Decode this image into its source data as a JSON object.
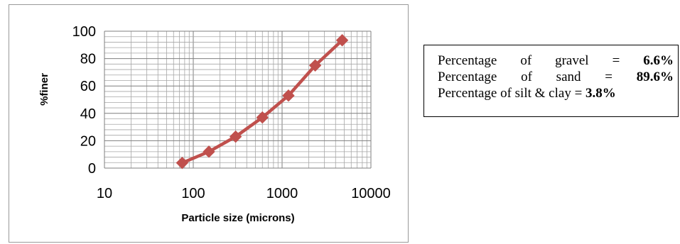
{
  "chart_data": {
    "type": "line",
    "xscale": "log",
    "xlim": [
      10,
      10000
    ],
    "ylim": [
      0,
      100
    ],
    "x_ticks": [
      "10",
      "100",
      "1000",
      "10000"
    ],
    "y_ticks": [
      "0",
      "20",
      "40",
      "60",
      "80",
      "100"
    ],
    "xlabel": "Particle size (microns)",
    "ylabel": "%finer",
    "grid": true,
    "series": [
      {
        "color": "#c0504d",
        "marker": "diamond",
        "x": [
          75,
          150,
          300,
          600,
          1180,
          2360,
          4750
        ],
        "y": [
          3.8,
          12,
          23,
          37,
          53,
          75,
          93.4
        ]
      }
    ]
  },
  "summary": {
    "gravel_label": [
      "Percentage",
      "of",
      "gravel",
      "="
    ],
    "gravel_value": "6.6%",
    "sand_label": [
      "Percentage",
      "of",
      "sand",
      "="
    ],
    "sand_value": "89.6%",
    "silt_label": "Percentage of silt & clay = ",
    "silt_value": "3.8%"
  }
}
